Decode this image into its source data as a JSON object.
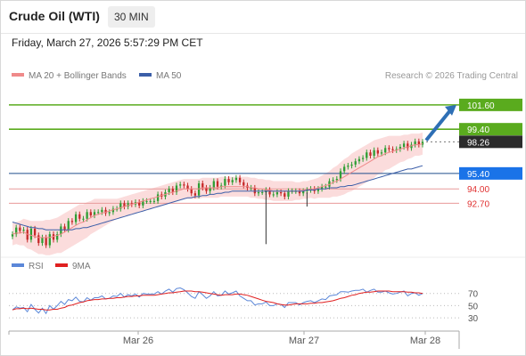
{
  "header": {
    "title": "Crude Oil (WTI)",
    "timeframe": "30 MIN"
  },
  "datetime": "Friday, March 27, 2026 5:57:29 PM CET",
  "legend": {
    "ma20_label": "MA 20 + Bollinger Bands",
    "ma50_label": "MA 50",
    "credit": "Research © 2026 Trading Central"
  },
  "rsi_legend": {
    "rsi_label": "RSI",
    "ma_label": "9MA"
  },
  "colors": {
    "up": "#2e9e34",
    "down": "#c62828",
    "ma20": "#ef8a8a",
    "band_fill": "#fbdcdc",
    "ma50": "#3b5ea8",
    "resistance": "#5aab1e",
    "pivot": "#1a73e8",
    "support": "#e03030",
    "arrow": "#2e6fb5",
    "rsi": "#5b87d8",
    "rsi_ma": "#e02020",
    "price_tag": "#2b2b2b"
  },
  "chart_data": [
    {
      "type": "candlestick",
      "panel": "price",
      "x_ticks": [
        "Mar 26",
        "Mar 27",
        "Mar 28"
      ],
      "ylim": [
        88.3,
        103.2
      ],
      "levels": [
        {
          "label": "101.60",
          "value": 101.6,
          "kind": "resistance"
        },
        {
          "label": "99.40",
          "value": 99.4,
          "kind": "resistance"
        },
        {
          "label": "98.26",
          "value": 98.26,
          "kind": "last-price"
        },
        {
          "label": "95.40",
          "value": 95.4,
          "kind": "pivot"
        },
        {
          "label": "94.00",
          "value": 94.0,
          "kind": "support"
        },
        {
          "label": "92.70",
          "value": 92.7,
          "kind": "support"
        }
      ],
      "arrow": {
        "from": 98.4,
        "to": 101.6,
        "direction": "up"
      },
      "close": [
        89.9,
        90.5,
        90.2,
        90.3,
        89.4,
        90.4,
        89.8,
        89.1,
        89.6,
        88.9,
        89.9,
        89.4,
        89.9,
        90.6,
        90.3,
        91.1,
        91.0,
        91.7,
        91.3,
        91.3,
        91.9,
        91.6,
        91.9,
        91.9,
        92.1,
        91.8,
        91.9,
        92.2,
        92.2,
        92.7,
        92.4,
        92.7,
        92.6,
        92.8,
        92.5,
        92.9,
        92.9,
        92.9,
        92.9,
        93.5,
        93.3,
        93.7,
        94.0,
        93.7,
        94.3,
        94.4,
        94.3,
        94.0,
        93.6,
        93.4,
        94.5,
        94.1,
        93.8,
        94.1,
        94.7,
        94.2,
        94.3,
        94.9,
        94.6,
        94.8,
        95.0,
        94.6,
        94.3,
        94.1,
        94.1,
        93.6,
        93.7,
        93.7,
        93.9,
        93.5,
        93.5,
        93.7,
        93.6,
        93.3,
        93.8,
        93.8,
        93.8,
        93.6,
        93.8,
        93.9,
        94.0,
        93.8,
        94.0,
        94.2,
        94.2,
        94.7,
        94.8,
        94.9,
        95.6,
        96.0,
        96.1,
        96.2,
        96.5,
        96.7,
        96.8,
        97.3,
        97.0,
        97.5,
        97.2,
        97.3,
        97.7,
        97.6,
        97.5,
        97.6,
        97.8,
        98.1,
        97.7,
        98.0,
        98.3,
        98.0,
        98.26
      ],
      "ma20": [
        89.9,
        90.0,
        90.0,
        90.1,
        89.9,
        89.8,
        89.7,
        89.6,
        89.6,
        89.6,
        89.6,
        89.7,
        89.8,
        89.9,
        90.1,
        90.3,
        90.5,
        90.7,
        90.9,
        91.0,
        91.2,
        91.4,
        91.6,
        91.7,
        91.8,
        91.9,
        92.0,
        92.1,
        92.2,
        92.3,
        92.4,
        92.5,
        92.6,
        92.7,
        92.8,
        92.9,
        93.0,
        93.1,
        93.2,
        93.3,
        93.4,
        93.5,
        93.6,
        93.7,
        93.8,
        93.9,
        94.0,
        94.0,
        94.0,
        94.0,
        94.0,
        94.1,
        94.1,
        94.1,
        94.1,
        94.1,
        94.2,
        94.2,
        94.2,
        94.2,
        94.2,
        94.2,
        94.2,
        94.2,
        94.1,
        94.1,
        94.0,
        94.0,
        93.9,
        93.9,
        93.8,
        93.8,
        93.8,
        93.8,
        93.8,
        93.8,
        93.8,
        93.8,
        93.9,
        93.9,
        94.0,
        94.0,
        94.1,
        94.2,
        94.3,
        94.4,
        94.6,
        94.7,
        94.9,
        95.1,
        95.3,
        95.5,
        95.7,
        95.9,
        96.1,
        96.3,
        96.5,
        96.7,
        96.9,
        97.0,
        97.2,
        97.3,
        97.4,
        97.5,
        97.6,
        97.7,
        97.8,
        97.9,
        98.0,
        98.0,
        98.1
      ],
      "ma50": [
        91.0,
        90.9,
        90.8,
        90.7,
        90.6,
        90.5,
        90.5,
        90.4,
        90.4,
        90.3,
        90.3,
        90.3,
        90.3,
        90.3,
        90.3,
        90.3,
        90.3,
        90.4,
        90.4,
        90.5,
        90.5,
        90.6,
        90.7,
        90.8,
        90.9,
        91.0,
        91.1,
        91.2,
        91.3,
        91.4,
        91.5,
        91.6,
        91.7,
        91.8,
        91.9,
        92.0,
        92.1,
        92.2,
        92.3,
        92.4,
        92.5,
        92.6,
        92.7,
        92.8,
        92.9,
        93.0,
        93.1,
        93.2,
        93.2,
        93.3,
        93.3,
        93.4,
        93.4,
        93.5,
        93.5,
        93.6,
        93.6,
        93.7,
        93.7,
        93.8,
        93.8,
        93.8,
        93.8,
        93.8,
        93.8,
        93.8,
        93.8,
        93.8,
        93.8,
        93.8,
        93.8,
        93.8,
        93.8,
        93.8,
        93.8,
        93.8,
        93.8,
        93.8,
        93.8,
        93.9,
        93.9,
        93.9,
        94.0,
        94.0,
        94.0,
        94.1,
        94.1,
        94.1,
        94.2,
        94.2,
        94.3,
        94.3,
        94.4,
        94.5,
        94.6,
        94.7,
        94.8,
        94.9,
        95.0,
        95.1,
        95.2,
        95.3,
        95.4,
        95.5,
        95.6,
        95.7,
        95.8,
        95.8,
        95.9,
        96.0,
        96.1
      ],
      "bb_width": [
        1.0,
        1.0,
        1.1,
        1.2,
        1.3,
        1.3,
        1.4,
        1.5,
        1.5,
        1.6,
        1.6,
        1.6,
        1.6,
        1.7,
        1.7,
        1.7,
        1.7,
        1.7,
        1.7,
        1.6,
        1.6,
        1.5,
        1.5,
        1.4,
        1.3,
        1.2,
        1.1,
        1.0,
        0.9,
        0.9,
        0.9,
        0.9,
        0.9,
        0.9,
        0.9,
        0.9,
        0.9,
        0.9,
        0.9,
        0.9,
        0.9,
        0.9,
        0.9,
        0.9,
        0.9,
        0.9,
        0.9,
        0.9,
        0.9,
        0.9,
        0.9,
        0.9,
        0.9,
        0.9,
        0.9,
        0.9,
        0.9,
        0.9,
        0.9,
        0.9,
        0.9,
        0.9,
        0.9,
        0.9,
        0.9,
        0.9,
        0.9,
        0.9,
        0.9,
        0.9,
        0.9,
        0.9,
        0.9,
        0.9,
        0.9,
        0.9,
        0.8,
        0.8,
        0.8,
        0.8,
        0.8,
        0.9,
        0.9,
        1.0,
        1.1,
        1.2,
        1.3,
        1.4,
        1.5,
        1.6,
        1.6,
        1.7,
        1.7,
        1.7,
        1.7,
        1.7,
        1.7,
        1.7,
        1.6,
        1.6,
        1.5,
        1.5,
        1.4,
        1.3,
        1.2,
        1.2,
        1.1,
        1.1,
        1.0,
        1.0,
        1.0
      ]
    },
    {
      "type": "line",
      "panel": "rsi",
      "y_ticks": [
        70,
        50,
        30
      ],
      "ylim": [
        20,
        90
      ],
      "series": [
        {
          "name": "RSI",
          "values": [
            43,
            48,
            46,
            47,
            40,
            52,
            44,
            38,
            46,
            37,
            50,
            44,
            50,
            57,
            52,
            60,
            58,
            64,
            57,
            56,
            63,
            59,
            63,
            63,
            66,
            61,
            62,
            66,
            65,
            70,
            64,
            68,
            66,
            69,
            64,
            70,
            69,
            69,
            69,
            73,
            69,
            74,
            77,
            72,
            78,
            79,
            76,
            71,
            65,
            62,
            73,
            68,
            62,
            66,
            73,
            66,
            67,
            74,
            69,
            71,
            74,
            66,
            62,
            58,
            58,
            51,
            53,
            53,
            56,
            50,
            50,
            53,
            52,
            47,
            55,
            55,
            55,
            51,
            55,
            57,
            58,
            55,
            58,
            61,
            60,
            66,
            67,
            68,
            73,
            73,
            72,
            74,
            75,
            75,
            77,
            72,
            75,
            77,
            72,
            72,
            74,
            71,
            69,
            70,
            72,
            74,
            66,
            70,
            71,
            67,
            70
          ]
        },
        {
          "name": "9MA",
          "values": [
            43,
            45,
            45,
            46,
            45,
            46,
            45,
            44,
            44,
            43,
            43,
            44,
            44,
            46,
            47,
            50,
            51,
            53,
            55,
            56,
            58,
            59,
            60,
            60,
            61,
            61,
            62,
            62,
            63,
            63,
            64,
            65,
            65,
            66,
            66,
            67,
            67,
            67,
            67,
            68,
            69,
            70,
            71,
            71,
            72,
            73,
            74,
            74,
            74,
            73,
            73,
            72,
            71,
            70,
            69,
            68,
            67,
            68,
            68,
            68,
            69,
            69,
            68,
            67,
            65,
            63,
            61,
            59,
            57,
            56,
            55,
            53,
            52,
            51,
            51,
            52,
            53,
            53,
            53,
            53,
            54,
            54,
            55,
            55,
            56,
            57,
            58,
            60,
            62,
            63,
            65,
            67,
            68,
            70,
            71,
            72,
            72,
            73,
            74,
            74,
            74,
            74,
            73,
            73,
            73,
            73,
            72,
            72,
            71,
            71,
            70
          ]
        }
      ]
    }
  ]
}
